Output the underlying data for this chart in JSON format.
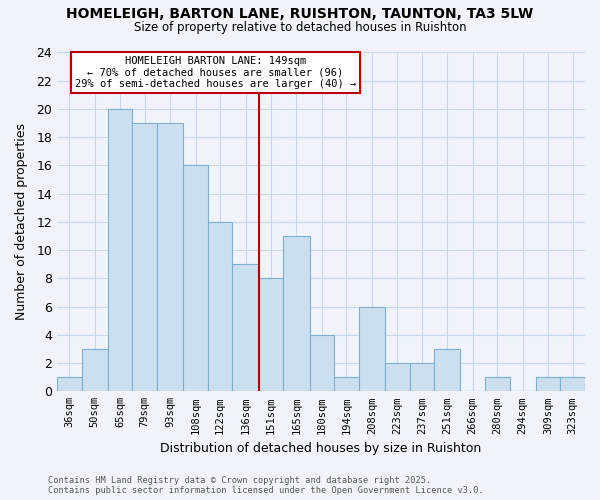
{
  "title": "HOMELEIGH, BARTON LANE, RUISHTON, TAUNTON, TA3 5LW",
  "subtitle": "Size of property relative to detached houses in Ruishton",
  "xlabel": "Distribution of detached houses by size in Ruishton",
  "ylabel": "Number of detached properties",
  "bin_labels": [
    "36sqm",
    "50sqm",
    "65sqm",
    "79sqm",
    "93sqm",
    "108sqm",
    "122sqm",
    "136sqm",
    "151sqm",
    "165sqm",
    "180sqm",
    "194sqm",
    "208sqm",
    "223sqm",
    "237sqm",
    "251sqm",
    "266sqm",
    "280sqm",
    "294sqm",
    "309sqm",
    "323sqm"
  ],
  "bin_edges": [
    36,
    50,
    65,
    79,
    93,
    108,
    122,
    136,
    151,
    165,
    180,
    194,
    208,
    223,
    237,
    251,
    266,
    280,
    294,
    309,
    323,
    337
  ],
  "bar_values": [
    1,
    3,
    20,
    19,
    19,
    16,
    12,
    9,
    8,
    11,
    4,
    1,
    6,
    2,
    2,
    3,
    0,
    1,
    0,
    1,
    1
  ],
  "bar_color": "#ccdff0",
  "bar_edgecolor": "#7ab0d0",
  "vline_x_bin": 8,
  "vline_color": "#bb0000",
  "annotation_title": "HOMELEIGH BARTON LANE: 149sqm",
  "annotation_line1": "← 70% of detached houses are smaller (96)",
  "annotation_line2": "29% of semi-detached houses are larger (40) →",
  "annotation_box_edgecolor": "#bb0000",
  "ylim": [
    0,
    24
  ],
  "yticks": [
    0,
    2,
    4,
    6,
    8,
    10,
    12,
    14,
    16,
    18,
    20,
    22,
    24
  ],
  "footnote1": "Contains HM Land Registry data © Crown copyright and database right 2025.",
  "footnote2": "Contains public sector information licensed under the Open Government Licence v3.0.",
  "bg_color": "#f0f4fa",
  "grid_color": "#c8d8e8"
}
